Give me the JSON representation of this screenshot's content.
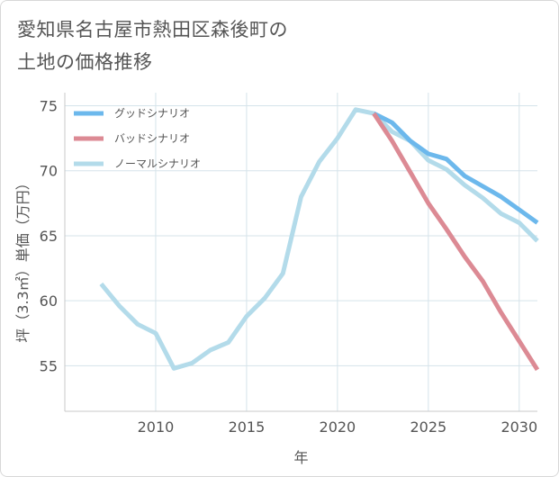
{
  "title_lines": [
    "愛知県名古屋市熱田区森後町の",
    "土地の価格推移"
  ],
  "chart_data": {
    "type": "line",
    "title": "愛知県名古屋市熱田区森後町の土地の価格推移",
    "xlabel": "年",
    "ylabel": "坪（3.3㎡）単価（万円）",
    "xlim": [
      2005,
      2031
    ],
    "ylim": [
      51.5,
      76
    ],
    "x_ticks": [
      2010,
      2015,
      2020,
      2025,
      2030
    ],
    "y_ticks": [
      55,
      60,
      65,
      70,
      75
    ],
    "grid": true,
    "legend_position": "top-left",
    "series": [
      {
        "name": "グッドシナリオ",
        "color": "#6cb8ec",
        "x": [
          2022,
          2023,
          2024,
          2025,
          2026,
          2027,
          2028,
          2029,
          2030,
          2031
        ],
        "values": [
          74.4,
          73.7,
          72.3,
          71.3,
          70.9,
          69.6,
          68.8,
          68.0,
          67.0,
          66.0
        ]
      },
      {
        "name": "バッドシナリオ",
        "color": "#dc8a94",
        "x": [
          2022,
          2023,
          2024,
          2025,
          2026,
          2027,
          2028,
          2029,
          2030,
          2031
        ],
        "values": [
          74.4,
          72.3,
          69.9,
          67.5,
          65.5,
          63.4,
          61.5,
          59.1,
          56.9,
          54.7
        ]
      },
      {
        "name": "ノーマルシナリオ",
        "color": "#b3dbea",
        "x": [
          2007,
          2008,
          2009,
          2010,
          2011,
          2012,
          2013,
          2014,
          2015,
          2016,
          2017,
          2018,
          2019,
          2020,
          2021,
          2022,
          2023,
          2024,
          2025,
          2026,
          2027,
          2028,
          2029,
          2030,
          2031
        ],
        "values": [
          61.3,
          59.6,
          58.2,
          57.5,
          54.8,
          55.2,
          56.2,
          56.8,
          58.8,
          60.2,
          62.1,
          68.0,
          70.7,
          72.5,
          74.7,
          74.4,
          73.0,
          72.3,
          70.8,
          70.1,
          68.9,
          67.9,
          66.7,
          66.0,
          64.6
        ]
      }
    ]
  }
}
